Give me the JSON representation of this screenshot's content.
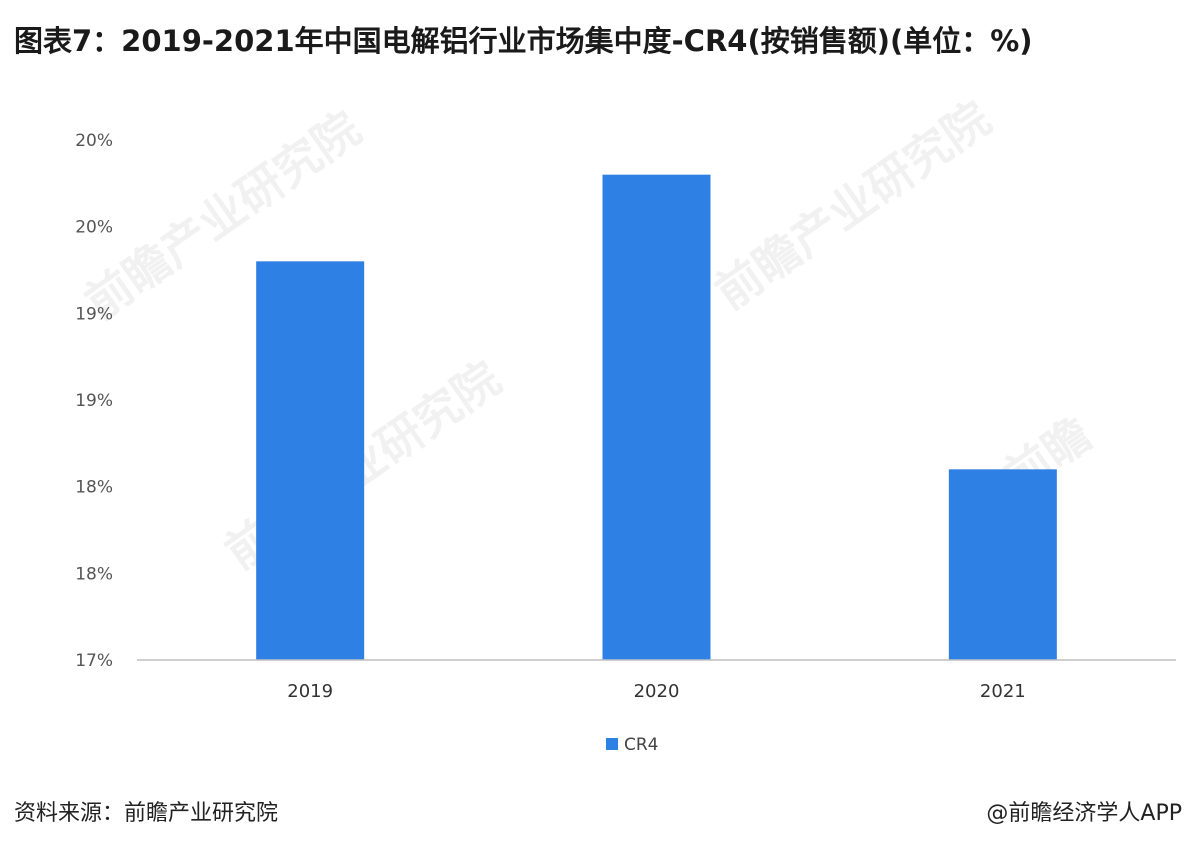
{
  "title": "图表7：2019-2021年中国电解铝行业市场集中度-CR4(按销售额)(单位：%)",
  "source": "资料来源：前瞻产业研究院",
  "credit": "@前瞻经济学人APP",
  "watermark": "前瞻产业研究院",
  "colors": {
    "bar": "#2f80e4",
    "axis": "#bfbfbf"
  },
  "chart_data": {
    "type": "bar",
    "categories": [
      "2019",
      "2020",
      "2021"
    ],
    "y_tick_labels": [
      "17%",
      "18%",
      "18%",
      "19%",
      "19%",
      "20%",
      "20%"
    ],
    "ylim": [
      17,
      20
    ],
    "series": [
      {
        "name": "CR4",
        "values": [
          19.3,
          19.8,
          18.1
        ]
      }
    ],
    "title": "图表7：2019-2021年中国电解铝行业市场集中度-CR4(按销售额)(单位：%)",
    "xlabel": "",
    "ylabel": "",
    "grid": false,
    "legend": "bottom-center"
  }
}
